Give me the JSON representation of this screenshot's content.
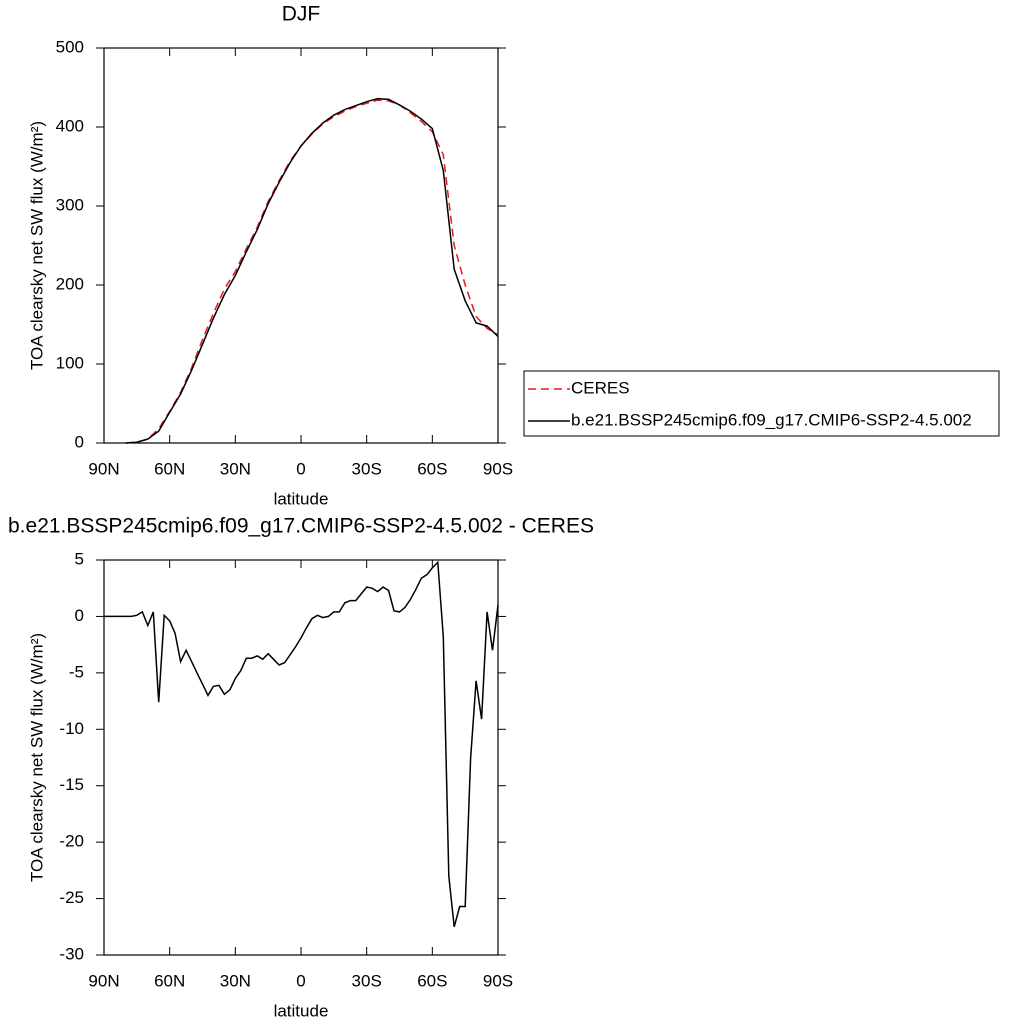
{
  "chart_data": [
    {
      "type": "line",
      "title": "DJF",
      "xlabel": "latitude",
      "ylabel": "TOA clearsky net SW flux (W/m²)",
      "x": [
        80,
        75,
        70,
        65,
        60,
        55,
        50,
        45,
        40,
        35,
        30,
        25,
        20,
        15,
        10,
        5,
        0,
        -5,
        -10,
        -15,
        -20,
        -25,
        -30,
        -35,
        -40,
        -45,
        -50,
        -55,
        -60,
        -65,
        -70,
        -75,
        -80,
        -85,
        -90
      ],
      "series": [
        {
          "name": "CERES",
          "color": "#e8191f",
          "style": "dashed",
          "values": [
            0,
            1,
            5,
            18,
            40,
            64,
            95,
            131,
            164,
            195,
            217,
            246,
            273,
            306,
            332,
            357,
            376,
            391,
            404,
            413,
            420,
            426,
            430,
            434,
            433,
            428,
            418,
            407,
            394,
            365,
            250,
            200,
            160,
            145,
            137
          ]
        },
        {
          "name": "b.e21.BSSP245cmip6.f09_g17.CMIP6-SSP2-4.5.002",
          "color": "#000000",
          "style": "solid",
          "values": [
            0,
            1,
            5,
            15,
            39,
            62,
            92,
            125,
            158,
            188,
            212,
            242,
            270,
            303,
            330,
            355,
            376,
            392,
            405,
            415,
            422,
            427,
            432,
            436,
            435,
            428,
            420,
            410,
            398,
            345,
            220,
            180,
            152,
            148,
            135
          ]
        }
      ],
      "xlim": [
        90,
        -90
      ],
      "xticks": [
        {
          "value": 90,
          "label": "90N"
        },
        {
          "value": 60,
          "label": "60N"
        },
        {
          "value": 30,
          "label": "30N"
        },
        0,
        {
          "value": -30,
          "label": "30S"
        },
        {
          "value": -60,
          "label": "60S"
        },
        {
          "value": -90,
          "label": "90S"
        }
      ],
      "ylim": [
        0,
        500
      ],
      "yticks": [
        0,
        100,
        200,
        300,
        400,
        500
      ],
      "legend": "right",
      "grid": false
    },
    {
      "type": "line",
      "title": "b.e21.BSSP245cmip6.f09_g17.CMIP6-SSP2-4.5.002 - CERES",
      "xlabel": "latitude",
      "ylabel": "TOA clearsky net SW flux (W/m²)",
      "x": [
        90,
        87.5,
        85,
        82.5,
        80,
        77.5,
        75,
        72.5,
        70,
        67.5,
        65,
        62.5,
        60,
        57.5,
        55,
        52.5,
        50,
        47.5,
        45,
        42.5,
        40,
        37.5,
        35,
        32.5,
        30,
        27.5,
        25,
        22.5,
        20,
        17.5,
        15,
        12.5,
        10,
        7.5,
        5,
        2.5,
        0,
        -2.5,
        -5,
        -7.5,
        -10,
        -12.5,
        -15,
        -17.5,
        -20,
        -22.5,
        -25,
        -27.5,
        -30,
        -32.5,
        -35,
        -37.5,
        -40,
        -42.5,
        -45,
        -47.5,
        -50,
        -52.5,
        -55,
        -57.5,
        -60,
        -62.5,
        -65,
        -67.5,
        -70,
        -72.5,
        -75,
        -77.5,
        -80,
        -82.5,
        -85,
        -87.5,
        -90
      ],
      "values": [
        0,
        0,
        0,
        0,
        0,
        0,
        0.1,
        0.4,
        -0.8,
        0.4,
        -7.6,
        0.1,
        -0.4,
        -1.5,
        -4,
        -3,
        -4,
        -5,
        -6,
        -7,
        -6.2,
        -6.1,
        -6.9,
        -6.5,
        -5.5,
        -4.8,
        -3.7,
        -3.7,
        -3.5,
        -3.8,
        -3.3,
        -3.8,
        -4.3,
        -4.1,
        -3.4,
        -2.7,
        -1.9,
        -1,
        -0.2,
        0.1,
        -0.1,
        0,
        0.4,
        0.4,
        1.2,
        1.4,
        1.4,
        2,
        2.6,
        2.5,
        2.2,
        2.6,
        2.3,
        0.5,
        0.4,
        0.8,
        1.5,
        2.4,
        3.4,
        3.7,
        4.3,
        4.8,
        -1.8,
        -23,
        -27.5,
        -25.7,
        -25.7,
        -12.6,
        -5.7,
        -9.1,
        0.4,
        -3,
        1
      ],
      "color": "#000000",
      "xlim": [
        90,
        -90
      ],
      "xticks": [
        {
          "value": 90,
          "label": "90N"
        },
        {
          "value": 60,
          "label": "60N"
        },
        {
          "value": 30,
          "label": "30N"
        },
        0,
        {
          "value": -30,
          "label": "30S"
        },
        {
          "value": -60,
          "label": "60S"
        },
        {
          "value": -90,
          "label": "90S"
        }
      ],
      "ylim": [
        -30,
        5
      ],
      "yticks": [
        -30,
        -25,
        -20,
        -15,
        -10,
        -5,
        0,
        5
      ],
      "grid": false
    }
  ]
}
